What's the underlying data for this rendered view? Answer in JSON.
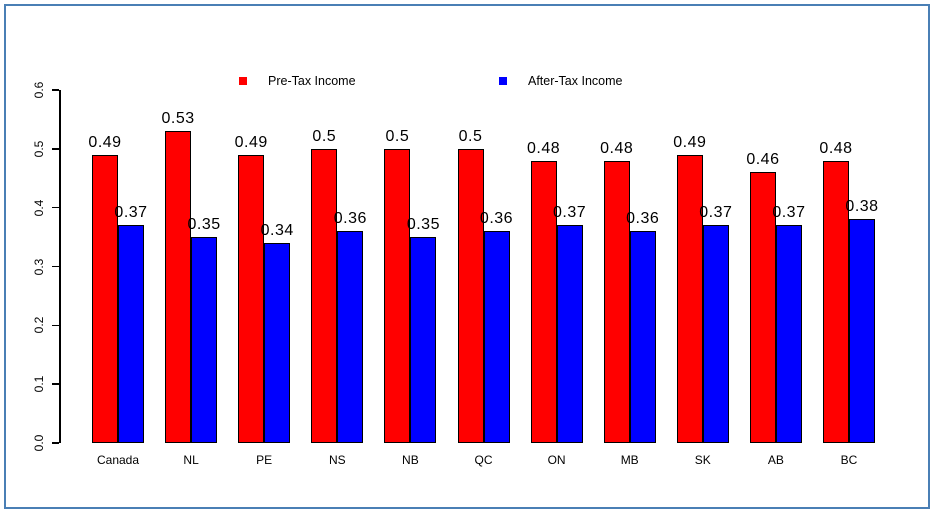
{
  "frame": {
    "border_color": "#4a7fb5"
  },
  "legend": {
    "position": "top",
    "items": [
      {
        "label": "Pre-Tax Income",
        "color": "#ff0000"
      },
      {
        "label": "After-Tax Income",
        "color": "#0000ff"
      }
    ]
  },
  "chart_data": {
    "type": "bar",
    "title": "",
    "xlabel": "",
    "ylabel": "",
    "categories": [
      "Canada",
      "NL",
      "PE",
      "NS",
      "NB",
      "QC",
      "ON",
      "MB",
      "SK",
      "AB",
      "BC"
    ],
    "series": [
      {
        "name": "Pre-Tax Income",
        "color": "#ff0000",
        "values": [
          0.49,
          0.53,
          0.49,
          0.5,
          0.5,
          0.5,
          0.48,
          0.48,
          0.49,
          0.46,
          0.48
        ],
        "labels": [
          "0.49",
          "0.53",
          "0.49",
          "0.5",
          "0.5",
          "0.5",
          "0.48",
          "0.48",
          "0.49",
          "0.46",
          "0.48"
        ]
      },
      {
        "name": "After-Tax Income",
        "color": "#0000ff",
        "values": [
          0.37,
          0.35,
          0.34,
          0.36,
          0.35,
          0.36,
          0.37,
          0.36,
          0.37,
          0.37,
          0.38
        ],
        "labels": [
          "0.37",
          "0.35",
          "0.34",
          "0.36",
          "0.35",
          "0.36",
          "0.37",
          "0.36",
          "0.37",
          "0.37",
          "0.38"
        ]
      }
    ],
    "ylim": [
      0.0,
      0.6
    ],
    "ytick_labels": [
      "0.0",
      "0.1",
      "0.2",
      "0.3",
      "0.4",
      "0.5",
      "0.6"
    ],
    "grid": false,
    "legend_position": "top",
    "bar_labels_shown": true
  }
}
